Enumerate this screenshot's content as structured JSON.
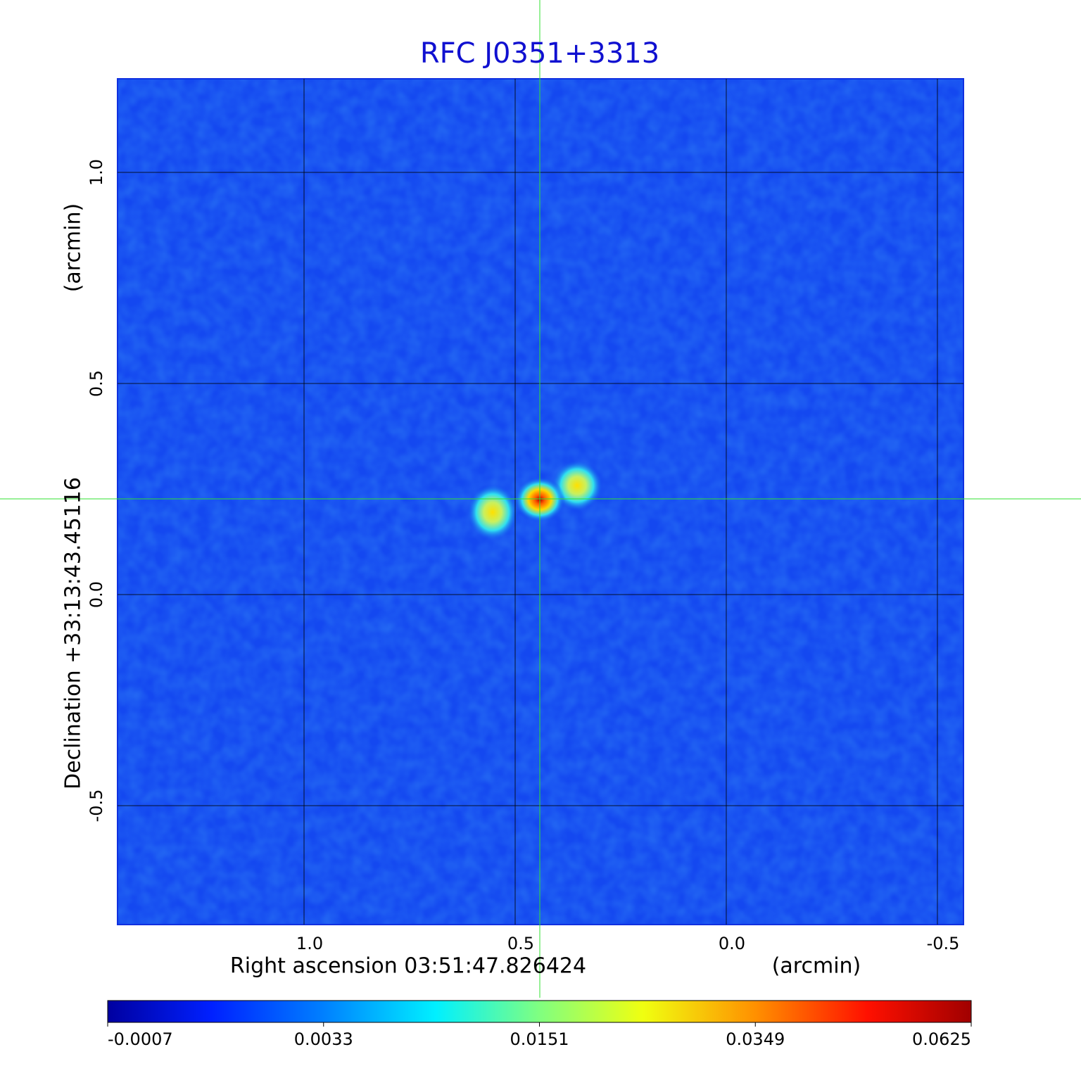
{
  "chart_data": {
    "type": "image",
    "title": "RFC J0351+3313",
    "x_label": "Right ascension  03:51:47.826424",
    "x_unit": "(arcmin)",
    "y_label": "Declination  +33:13:43.45116",
    "y_unit": "(arcmin)",
    "xlim": [
      1.4417,
      -0.5617
    ],
    "ylim": [
      -0.7817,
      1.2217
    ],
    "xticks": [
      {
        "value": 1.0,
        "label": "1.0"
      },
      {
        "value": 0.5,
        "label": "0.5"
      },
      {
        "value": 0.0,
        "label": "0.0"
      },
      {
        "value": -0.5,
        "label": "-0.5"
      }
    ],
    "yticks": [
      {
        "value": -0.5,
        "label": "-0.5"
      },
      {
        "value": 0.0,
        "label": "0.0"
      },
      {
        "value": 0.5,
        "label": "0.5"
      },
      {
        "value": 1.0,
        "label": "1.0"
      }
    ],
    "grid": true,
    "colorbar_ticks": [
      -0.0007,
      0.0033,
      0.0151,
      0.0349,
      0.0625
    ]
  }
}
